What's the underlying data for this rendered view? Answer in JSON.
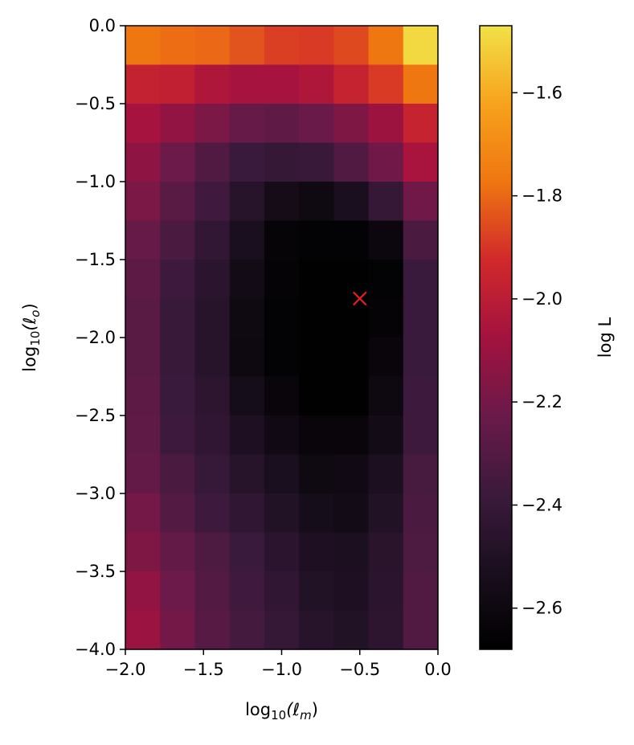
{
  "chart_data": {
    "type": "heatmap",
    "xlabel_parts": {
      "pre": "log",
      "sub": "10",
      "mid": "(ℓ",
      "sub2": "m",
      "post": ")"
    },
    "ylabel_parts": {
      "pre": "log",
      "sub": "10",
      "mid": "(ℓ",
      "sub2": "o",
      "post": ")"
    },
    "colorbar_label": "log L",
    "xlim": [
      -2.0,
      0.0
    ],
    "ylim": [
      -4.0,
      0.0
    ],
    "x_ticks": [
      -2.0,
      -1.5,
      -1.0,
      -0.5,
      0.0
    ],
    "x_tick_labels": [
      "−2.0",
      "−1.5",
      "−1.0",
      "−0.5",
      "0.0"
    ],
    "y_ticks": [
      0.0,
      -0.5,
      -1.0,
      -1.5,
      -2.0,
      -2.5,
      -3.0,
      -3.5,
      -4.0
    ],
    "y_tick_labels": [
      "0.0",
      "−0.5",
      "−1.0",
      "−1.5",
      "−2.0",
      "−2.5",
      "−3.0",
      "−3.5",
      "−4.0"
    ],
    "color_range": [
      -2.68,
      -1.47
    ],
    "colorbar_ticks": [
      -1.6,
      -1.8,
      -2.0,
      -2.2,
      -2.4,
      -2.6
    ],
    "colorbar_tick_labels": [
      "−1.6",
      "−1.8",
      "−2.0",
      "−2.2",
      "−2.4",
      "−2.6"
    ],
    "colormap": [
      "#000000",
      "#1a0f1e",
      "#3b1a3c",
      "#6a1a49",
      "#a3123f",
      "#d1292b",
      "#ef7611",
      "#f7a21d",
      "#f1e147"
    ],
    "ncols": 9,
    "nrows": 16,
    "values": [
      [
        -1.77,
        -1.79,
        -1.8,
        -1.84,
        -1.88,
        -1.89,
        -1.86,
        -1.77,
        -1.49
      ],
      [
        -1.97,
        -1.98,
        -2.04,
        -2.07,
        -2.07,
        -2.04,
        -1.96,
        -1.89,
        -1.77
      ],
      [
        -2.07,
        -2.12,
        -2.18,
        -2.24,
        -2.26,
        -2.23,
        -2.17,
        -2.09,
        -1.96
      ],
      [
        -2.13,
        -2.22,
        -2.31,
        -2.38,
        -2.41,
        -2.39,
        -2.31,
        -2.21,
        -2.06
      ],
      [
        -2.18,
        -2.28,
        -2.36,
        -2.47,
        -2.56,
        -2.59,
        -2.53,
        -2.41,
        -2.21
      ],
      [
        -2.24,
        -2.33,
        -2.42,
        -2.53,
        -2.64,
        -2.66,
        -2.66,
        -2.61,
        -2.33
      ],
      [
        -2.27,
        -2.37,
        -2.45,
        -2.57,
        -2.65,
        -2.67,
        -2.67,
        -2.66,
        -2.38
      ],
      [
        -2.28,
        -2.39,
        -2.47,
        -2.59,
        -2.66,
        -2.67,
        -2.67,
        -2.65,
        -2.38
      ],
      [
        -2.28,
        -2.39,
        -2.47,
        -2.6,
        -2.66,
        -2.67,
        -2.67,
        -2.63,
        -2.38
      ],
      [
        -2.27,
        -2.38,
        -2.44,
        -2.55,
        -2.63,
        -2.67,
        -2.67,
        -2.6,
        -2.37
      ],
      [
        -2.26,
        -2.37,
        -2.43,
        -2.51,
        -2.58,
        -2.63,
        -2.63,
        -2.57,
        -2.37
      ],
      [
        -2.25,
        -2.33,
        -2.4,
        -2.47,
        -2.53,
        -2.59,
        -2.58,
        -2.52,
        -2.34
      ],
      [
        -2.2,
        -2.3,
        -2.37,
        -2.43,
        -2.49,
        -2.55,
        -2.57,
        -2.49,
        -2.33
      ],
      [
        -2.17,
        -2.25,
        -2.32,
        -2.38,
        -2.45,
        -2.51,
        -2.52,
        -2.46,
        -2.32
      ],
      [
        -2.12,
        -2.22,
        -2.3,
        -2.36,
        -2.43,
        -2.49,
        -2.51,
        -2.45,
        -2.31
      ],
      [
        -2.1,
        -2.2,
        -2.29,
        -2.35,
        -2.41,
        -2.47,
        -2.49,
        -2.44,
        -2.31
      ]
    ],
    "marker": {
      "x": -0.5,
      "y": -1.75,
      "symbol": "×",
      "color": "#e8201d"
    }
  }
}
